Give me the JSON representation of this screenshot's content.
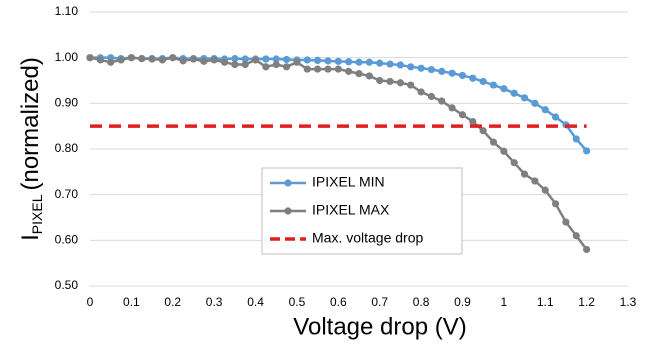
{
  "chart_data": {
    "type": "line",
    "xlabel": "Voltage drop (V)",
    "ylabel": [
      "I",
      "PIXEL",
      "(normalized)"
    ],
    "xlim": [
      0,
      1.3
    ],
    "xticks": [
      0,
      0.1,
      0.2,
      0.3,
      0.4,
      0.5,
      0.6,
      0.7,
      0.8,
      0.9,
      1,
      1.1,
      1.2,
      1.3
    ],
    "ylim": [
      0.5,
      1.1
    ],
    "yticks": [
      {
        "value": 0.5,
        "label": "0.50"
      },
      {
        "value": 0.6,
        "label": "0.60"
      },
      {
        "value": 0.7,
        "label": "0.70"
      },
      {
        "value": 0.8,
        "label": "0.80"
      },
      {
        "value": 0.9,
        "label": "0.90"
      },
      {
        "value": 1.0,
        "label": "1.00"
      },
      {
        "value": 1.1,
        "label": "1.10"
      }
    ],
    "grid": true,
    "legend": "center",
    "series": [
      {
        "name": "IPIXEL MIN",
        "color": "#5b9bd5",
        "markers": true,
        "dashed": false,
        "x": [
          0,
          0.025,
          0.05,
          0.075,
          0.1,
          0.125,
          0.15,
          0.175,
          0.2,
          0.225,
          0.25,
          0.275,
          0.3,
          0.325,
          0.35,
          0.375,
          0.4,
          0.425,
          0.45,
          0.475,
          0.5,
          0.525,
          0.55,
          0.575,
          0.6,
          0.625,
          0.65,
          0.675,
          0.7,
          0.725,
          0.75,
          0.775,
          0.8,
          0.825,
          0.85,
          0.875,
          0.9,
          0.925,
          0.95,
          0.975,
          1.0,
          1.025,
          1.05,
          1.075,
          1.1,
          1.125,
          1.15,
          1.175,
          1.2
        ],
        "values": [
          1.0,
          1.0,
          1.0,
          0.998,
          1.0,
          0.998,
          0.998,
          0.998,
          1.0,
          0.998,
          0.998,
          0.998,
          0.998,
          0.997,
          0.998,
          0.997,
          0.997,
          0.997,
          0.997,
          0.996,
          0.995,
          0.995,
          0.994,
          0.993,
          0.992,
          0.991,
          0.99,
          0.99,
          0.988,
          0.986,
          0.984,
          0.98,
          0.977,
          0.974,
          0.97,
          0.966,
          0.961,
          0.955,
          0.948,
          0.94,
          0.932,
          0.922,
          0.912,
          0.9,
          0.886,
          0.87,
          0.853,
          0.822,
          0.796
        ]
      },
      {
        "name": "IPIXEL MAX",
        "color": "#7f7f7f",
        "markers": true,
        "dashed": false,
        "x": [
          0,
          0.025,
          0.05,
          0.075,
          0.1,
          0.125,
          0.15,
          0.175,
          0.2,
          0.225,
          0.25,
          0.275,
          0.3,
          0.325,
          0.35,
          0.375,
          0.4,
          0.425,
          0.45,
          0.475,
          0.5,
          0.525,
          0.55,
          0.575,
          0.6,
          0.625,
          0.65,
          0.675,
          0.7,
          0.725,
          0.75,
          0.775,
          0.8,
          0.825,
          0.85,
          0.875,
          0.9,
          0.925,
          0.95,
          0.975,
          1.0,
          1.025,
          1.05,
          1.075,
          1.1,
          1.125,
          1.15,
          1.175,
          1.2
        ],
        "values": [
          1.0,
          0.995,
          0.99,
          0.995,
          1.0,
          0.998,
          0.997,
          0.995,
          1.0,
          0.993,
          0.997,
          0.992,
          0.995,
          0.99,
          0.985,
          0.985,
          0.995,
          0.98,
          0.985,
          0.98,
          0.99,
          0.975,
          0.975,
          0.975,
          0.975,
          0.97,
          0.965,
          0.96,
          0.95,
          0.948,
          0.945,
          0.94,
          0.925,
          0.915,
          0.905,
          0.89,
          0.875,
          0.86,
          0.84,
          0.815,
          0.795,
          0.77,
          0.745,
          0.73,
          0.71,
          0.68,
          0.64,
          0.61,
          0.58
        ]
      },
      {
        "name": "Max. voltage drop",
        "color": "#e02020",
        "markers": false,
        "dashed": true,
        "x": [
          0,
          1.2
        ],
        "values": [
          0.85,
          0.85
        ]
      }
    ]
  }
}
